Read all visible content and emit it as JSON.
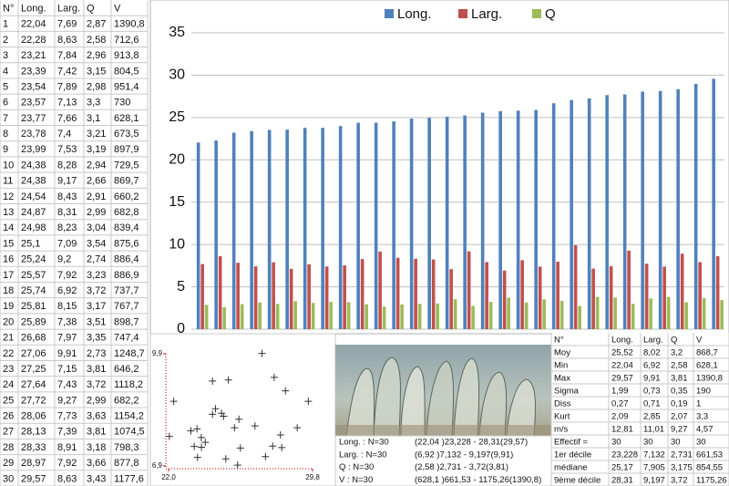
{
  "left_table": {
    "header": [
      "N°",
      "Long.",
      "Larg.",
      "Q",
      "V"
    ],
    "rows": [
      [
        "1",
        "22,04",
        "7,69",
        "2,87",
        "1390,8"
      ],
      [
        "2",
        "22,28",
        "8,63",
        "2,58",
        "712,6"
      ],
      [
        "3",
        "23,21",
        "7,84",
        "2,96",
        "913,8"
      ],
      [
        "4",
        "23,39",
        "7,42",
        "3,15",
        "804,5"
      ],
      [
        "5",
        "23,54",
        "7,89",
        "2,98",
        "951,4"
      ],
      [
        "6",
        "23,57",
        "7,13",
        "3,3",
        "730"
      ],
      [
        "7",
        "23,77",
        "7,66",
        "3,1",
        "628,1"
      ],
      [
        "8",
        "23,78",
        "7,4",
        "3,21",
        "673,5"
      ],
      [
        "9",
        "23,99",
        "7,53",
        "3,19",
        "897,9"
      ],
      [
        "10",
        "24,38",
        "8,28",
        "2,94",
        "729,5"
      ],
      [
        "11",
        "24,38",
        "9,17",
        "2,66",
        "869,7"
      ],
      [
        "12",
        "24,54",
        "8,43",
        "2,91",
        "660,2"
      ],
      [
        "13",
        "24,87",
        "8,31",
        "2,99",
        "682,8"
      ],
      [
        "14",
        "24,98",
        "8,23",
        "3,04",
        "839,4"
      ],
      [
        "15",
        "25,1",
        "7,09",
        "3,54",
        "875,6"
      ],
      [
        "16",
        "25,24",
        "9,2",
        "2,74",
        "886,4"
      ],
      [
        "17",
        "25,57",
        "7,92",
        "3,23",
        "886,9"
      ],
      [
        "18",
        "25,74",
        "6,92",
        "3,72",
        "737,7"
      ],
      [
        "19",
        "25,81",
        "8,15",
        "3,17",
        "767,7"
      ],
      [
        "20",
        "25,89",
        "7,38",
        "3,51",
        "898,7"
      ],
      [
        "21",
        "26,68",
        "7,97",
        "3,35",
        "747,4"
      ],
      [
        "22",
        "27,06",
        "9,91",
        "2,73",
        "1248,7"
      ],
      [
        "23",
        "27,25",
        "7,15",
        "3,81",
        "646,2"
      ],
      [
        "24",
        "27,64",
        "7,43",
        "3,72",
        "1118,2"
      ],
      [
        "25",
        "27,72",
        "9,27",
        "2,99",
        "682,2"
      ],
      [
        "26",
        "28,06",
        "7,73",
        "3,63",
        "1154,2"
      ],
      [
        "27",
        "28,13",
        "7,39",
        "3,81",
        "1074,5"
      ],
      [
        "28",
        "28,33",
        "8,91",
        "3,18",
        "798,3"
      ],
      [
        "29",
        "28,97",
        "7,92",
        "3,66",
        "877,8"
      ],
      [
        "30",
        "29,57",
        "8,63",
        "3,43",
        "1177,6"
      ]
    ]
  },
  "chart_data": [
    {
      "type": "bar",
      "legend": "top",
      "grid": true,
      "ylim": [
        0,
        35
      ],
      "yticks": [
        0,
        5,
        10,
        15,
        20,
        25,
        30,
        35
      ],
      "categories": [
        null,
        null,
        null,
        null,
        null,
        null,
        null,
        null,
        null,
        null,
        null,
        null,
        null,
        null,
        null,
        null,
        null,
        null,
        null,
        null,
        null,
        null,
        null,
        null,
        null,
        null,
        null,
        null,
        null,
        null
      ],
      "series": [
        {
          "name": "Long.",
          "color": "#4f81bd",
          "values": [
            22.04,
            22.28,
            23.21,
            23.39,
            23.54,
            23.57,
            23.77,
            23.78,
            23.99,
            24.38,
            24.38,
            24.54,
            24.87,
            24.98,
            25.1,
            25.24,
            25.57,
            25.74,
            25.81,
            25.89,
            26.68,
            27.06,
            27.25,
            27.64,
            27.72,
            28.06,
            28.13,
            28.33,
            28.97,
            29.57
          ]
        },
        {
          "name": "Larg.",
          "color": "#c0504d",
          "values": [
            7.69,
            8.63,
            7.84,
            7.42,
            7.89,
            7.13,
            7.66,
            7.4,
            7.53,
            8.28,
            9.17,
            8.43,
            8.31,
            8.23,
            7.09,
            9.2,
            7.92,
            6.92,
            8.15,
            7.38,
            7.97,
            9.91,
            7.15,
            7.43,
            9.27,
            7.73,
            7.39,
            8.91,
            7.92,
            8.63
          ]
        },
        {
          "name": "Q",
          "color": "#9bbb59",
          "values": [
            2.87,
            2.58,
            2.96,
            3.15,
            2.98,
            3.3,
            3.1,
            3.21,
            3.19,
            2.94,
            2.66,
            2.91,
            2.99,
            3.04,
            3.54,
            2.74,
            3.23,
            3.72,
            3.17,
            3.51,
            3.35,
            2.73,
            3.81,
            3.72,
            2.99,
            3.63,
            3.81,
            3.18,
            3.66,
            3.43
          ]
        }
      ]
    },
    {
      "type": "scatter",
      "color": "#333333",
      "axis_color": "#c00000",
      "xlim": [
        22.0,
        29.8
      ],
      "xticks": [
        {
          "value": 22.0,
          "label": "22,0"
        },
        {
          "value": 29.8,
          "label": "29,8"
        }
      ],
      "ylim": [
        6.9,
        9.9
      ],
      "yticks": [
        {
          "value": 6.9,
          "label": "6,9"
        },
        {
          "value": 9.9,
          "label": "9,9"
        }
      ],
      "x": [
        22.04,
        22.28,
        23.21,
        23.39,
        23.54,
        23.57,
        23.77,
        23.78,
        23.99,
        24.38,
        24.38,
        24.54,
        24.87,
        24.98,
        25.1,
        25.24,
        25.57,
        25.74,
        25.81,
        25.89,
        26.68,
        27.06,
        27.25,
        27.64,
        27.72,
        28.06,
        28.13,
        28.33,
        28.97,
        29.57
      ],
      "values": [
        7.69,
        8.63,
        7.84,
        7.42,
        7.89,
        7.13,
        7.66,
        7.4,
        7.53,
        8.28,
        9.17,
        8.43,
        8.31,
        8.23,
        7.09,
        9.2,
        7.92,
        6.92,
        8.15,
        7.38,
        7.97,
        9.91,
        7.15,
        7.43,
        9.27,
        7.73,
        7.39,
        8.91,
        7.92,
        8.63
      ]
    }
  ],
  "captions": {
    "rows": [
      [
        "Long. : N=30",
        "(22,04 )23,228 - 28,31(29,57)"
      ],
      [
        "Larg. : N=30",
        "(6,92 )7,132 - 9,197(9,91)"
      ],
      [
        "Q : N=30",
        "(2,58 )2,731 - 3,72(3,81)"
      ],
      [
        "V : N=30",
        "(628,1 )661,53 - 1175,26(1390,8)"
      ]
    ]
  },
  "stats_table": {
    "header": [
      "N°",
      "Long.",
      "Larg.",
      "Q",
      "V"
    ],
    "rows": [
      [
        "Moy",
        "25,52",
        "8,02",
        "3,2",
        "868,7"
      ],
      [
        "Min",
        "22,04",
        "6,92",
        "2,58",
        "628,1"
      ],
      [
        "Max",
        "29,57",
        "9,91",
        "3,81",
        "1390,8"
      ],
      [
        "Sigma",
        "1,99",
        "0,73",
        "0,35",
        "190"
      ],
      [
        "Diss",
        "0,27",
        "0,71",
        "0,19",
        "1"
      ],
      [
        "Kurt",
        "2,09",
        "2,85",
        "2,07",
        "3,3"
      ],
      [
        "m/s",
        "12,81",
        "11,01",
        "9,27",
        "4,57"
      ],
      [
        "Effectif =",
        "30",
        "30",
        "30",
        "30"
      ],
      [
        "1er décile",
        "23,228",
        "7,132",
        "2,731",
        "661,53"
      ],
      [
        "médiane",
        "25,17",
        "7,905",
        "3,175",
        "854,55"
      ],
      [
        "9ème décile",
        "28,31",
        "9,197",
        "3,72",
        "1175,26"
      ]
    ]
  }
}
